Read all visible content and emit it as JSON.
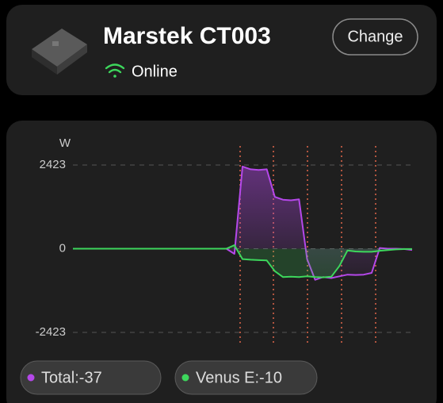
{
  "device": {
    "name": "Marstek CT003",
    "status": "Online",
    "action": "Change"
  },
  "chart_data": {
    "type": "line",
    "y_label": "W",
    "categories": [
      null,
      null,
      null,
      null,
      null,
      null,
      null,
      null,
      null,
      null,
      null,
      null,
      null,
      null,
      null,
      null,
      null,
      null,
      null,
      null,
      null,
      null,
      null,
      null,
      null,
      null,
      null,
      null,
      null,
      null,
      null,
      null,
      null,
      null,
      null,
      null,
      null,
      null,
      null,
      null,
      null,
      null,
      null
    ],
    "series": [
      {
        "name": "Total:-37",
        "color": "#b548ea",
        "values": [
          0,
          0,
          0,
          0,
          0,
          0,
          0,
          0,
          0,
          0,
          0,
          0,
          0,
          0,
          0,
          0,
          0,
          0,
          0,
          0,
          -150,
          2380,
          2300,
          2280,
          2300,
          1500,
          1420,
          1400,
          1430,
          -300,
          -900,
          -820,
          -850,
          -800,
          -750,
          -760,
          -750,
          -700,
          20,
          0,
          0,
          -10,
          -37
        ]
      },
      {
        "name": "Venus E:-10",
        "color": "#3dd75c",
        "values": [
          0,
          0,
          0,
          0,
          0,
          0,
          0,
          0,
          0,
          0,
          0,
          0,
          0,
          0,
          0,
          0,
          0,
          0,
          0,
          0,
          100,
          -300,
          -320,
          -330,
          -340,
          -650,
          -820,
          -810,
          -820,
          -800,
          -820,
          -830,
          -810,
          -500,
          -50,
          -80,
          -90,
          -90,
          -60,
          -40,
          -20,
          -10,
          -10
        ]
      }
    ],
    "ylim": [
      -2423,
      2423
    ],
    "yticks": [
      2423,
      0,
      -2423
    ],
    "grid": true
  }
}
